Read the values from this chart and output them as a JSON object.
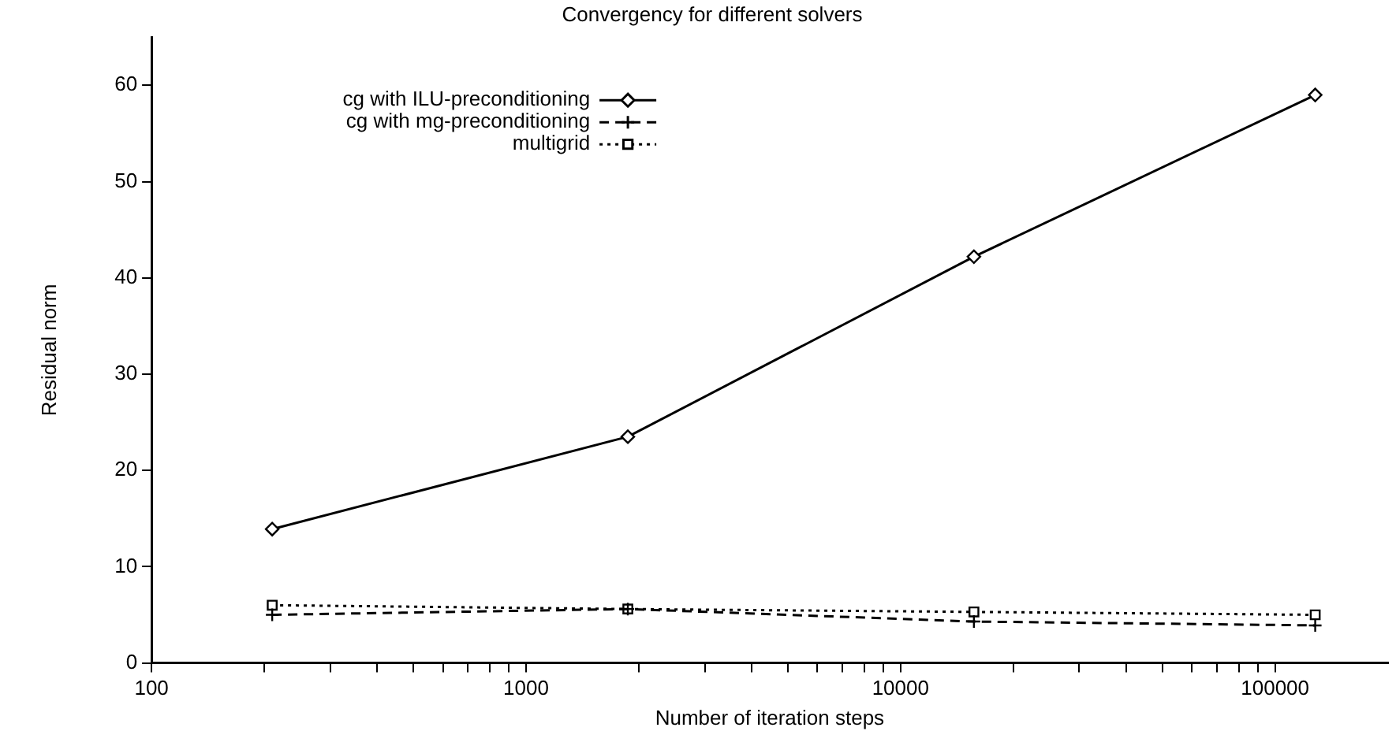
{
  "chart_data": {
    "type": "line",
    "title": "Convergency for different solvers",
    "xlabel": "Number of iteration steps",
    "ylabel": "Residual norm",
    "log": "x",
    "grid": false,
    "legend": "top left",
    "xlim": [
      100,
      200000
    ],
    "xticks": [
      100,
      {
        "value": 200,
        "label": null
      },
      {
        "value": 300,
        "label": null
      },
      {
        "value": 400,
        "label": null
      },
      {
        "value": 500,
        "label": null
      },
      {
        "value": 600,
        "label": null
      },
      {
        "value": 700,
        "label": null
      },
      {
        "value": 800,
        "label": null
      },
      {
        "value": 900,
        "label": null
      },
      1000,
      {
        "value": 2000,
        "label": null
      },
      {
        "value": 3000,
        "label": null
      },
      {
        "value": 4000,
        "label": null
      },
      {
        "value": 5000,
        "label": null
      },
      {
        "value": 6000,
        "label": null
      },
      {
        "value": 7000,
        "label": null
      },
      {
        "value": 8000,
        "label": null
      },
      {
        "value": 9000,
        "label": null
      },
      10000,
      {
        "value": 20000,
        "label": null
      },
      {
        "value": 30000,
        "label": null
      },
      {
        "value": 40000,
        "label": null
      },
      {
        "value": 50000,
        "label": null
      },
      {
        "value": 60000,
        "label": null
      },
      {
        "value": 70000,
        "label": null
      },
      {
        "value": 80000,
        "label": null
      },
      {
        "value": 90000,
        "label": null
      },
      100000
    ],
    "ylim": [
      0,
      65
    ],
    "yticks": [
      0,
      10,
      20,
      30,
      40,
      50,
      60
    ],
    "x": [
      210,
      1870,
      15700,
      128000
    ],
    "series": [
      {
        "name": "cg with ILU-preconditioning",
        "color": "#000000",
        "marker": "diamond",
        "line_style": "solid",
        "values": [
          13.9,
          23.5,
          42.2,
          59
        ]
      },
      {
        "name": "cg with mg-preconditioning",
        "color": "#000000",
        "marker": "cross",
        "line_style": "dashed",
        "values": [
          5.0,
          5.6,
          4.3,
          3.9
        ]
      },
      {
        "name": "multigrid",
        "color": "#000000",
        "marker": "square",
        "line_style": "dotted",
        "values": [
          6.0,
          5.6,
          5.3,
          5.0
        ]
      }
    ]
  }
}
